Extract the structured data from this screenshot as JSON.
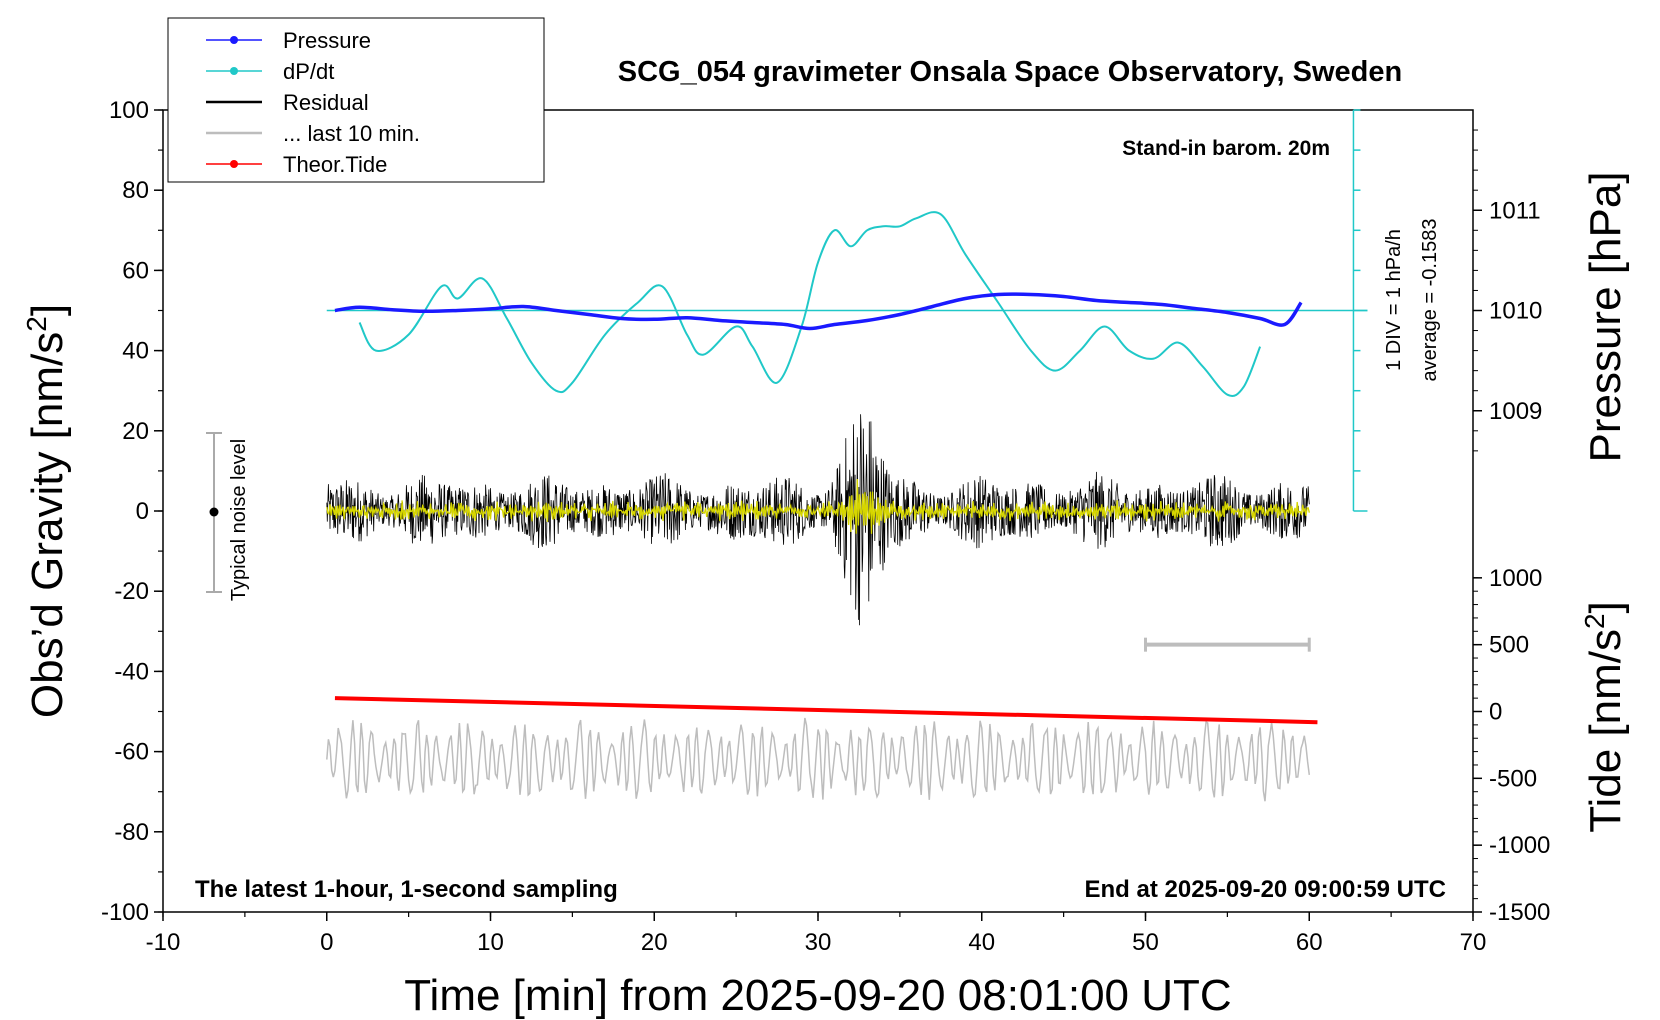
{
  "chart_data": {
    "type": "line",
    "title": "SCG_054 gravimeter Onsala Space Observatory, Sweden",
    "xlabel": "Time [min] from 2025-09-20 08:01:00 UTC",
    "ylabel_base": "Obs’d Gravity [nm/s",
    "ylabel_sup": "2",
    "ylabel_end": "]",
    "y2label": "Pressure [hPa]",
    "y3label_base": "Tide [nm/s",
    "y3label_sup": "2",
    "y3label_end": "]",
    "xlim": [
      -10,
      70
    ],
    "ylim": [
      -100,
      100
    ],
    "xticks": [
      -10,
      0,
      10,
      20,
      30,
      40,
      50,
      60,
      70
    ],
    "yticks": [
      -100,
      -80,
      -60,
      -40,
      -20,
      0,
      20,
      40,
      60,
      80,
      100
    ],
    "pressure_ticks": [
      1009,
      1010,
      1011
    ],
    "tide_ticks": [
      -1500,
      -1000,
      -500,
      0,
      500,
      1000
    ],
    "notes": {
      "stand_in": "Stand-in barom. 20m",
      "div": "1 DIV = 1 hPa/h",
      "average": "average = -0.1583",
      "footer_left": "The latest 1-hour, 1-second sampling",
      "footer_right": "End at 2025-09-20 09:00:59 UTC",
      "noise": "Typical noise level"
    },
    "legend": [
      {
        "label": "Pressure",
        "color": "#1a1aff",
        "marker": true
      },
      {
        "label": "dP/dt",
        "color": "#20c8c8",
        "marker": true
      },
      {
        "label": "Residual",
        "color": "#000000",
        "marker": false
      },
      {
        "label": "... last 10 min.",
        "color": "#bdbdbd",
        "marker": false
      },
      {
        "label": "Theor.Tide",
        "color": "#ff0000",
        "marker": true
      }
    ],
    "series": [
      {
        "name": "Pressure",
        "units": "gravity-axis",
        "x": [
          0.5,
          2,
          4,
          6,
          8,
          10,
          12,
          14,
          16,
          18,
          20,
          22,
          24,
          26,
          28,
          29.5,
          31,
          33,
          35,
          37,
          39,
          41,
          43,
          45,
          47,
          49,
          51,
          53,
          55,
          57,
          58.5,
          59.5
        ],
        "values": [
          50,
          50.8,
          50.2,
          49.8,
          50,
          50.4,
          51,
          50,
          49,
          48,
          47.8,
          48.2,
          47.5,
          47,
          46.5,
          45.5,
          46.5,
          47.5,
          49,
          51,
          53,
          54,
          54,
          53.5,
          52.5,
          52,
          51.5,
          50.5,
          49.5,
          48,
          46.5,
          52
        ]
      },
      {
        "name": "dP/dt",
        "units": "gravity-axis",
        "x": [
          2,
          3,
          5,
          7,
          8,
          9.5,
          11,
          12.5,
          14,
          15,
          17,
          19,
          20.5,
          22,
          23,
          25,
          26,
          27.5,
          29,
          30,
          31,
          32,
          33,
          34,
          35,
          36,
          37.5,
          39,
          41,
          43,
          44.5,
          46,
          47.5,
          49,
          50.5,
          52,
          53.5,
          55,
          56,
          57
        ],
        "values": [
          47,
          40,
          44,
          56,
          53,
          58,
          48,
          37,
          30,
          32,
          44,
          52,
          56,
          44,
          39,
          46,
          41,
          32,
          46,
          62,
          70,
          66,
          70,
          71,
          71,
          73,
          74,
          64,
          52,
          40,
          35,
          40,
          46,
          40,
          38,
          42,
          36,
          29,
          31,
          41
        ]
      },
      {
        "name": "Theor.Tide",
        "units": "nm/s2",
        "x": [
          0.5,
          60.5
        ],
        "values": [
          100,
          -80
        ]
      }
    ],
    "residual_envelope": {
      "center": 0,
      "baseline_amplitude": 9,
      "peak_time_min": 32.7,
      "peak_amplitude": 30
    },
    "last10_trace": {
      "center": -62,
      "amplitude": 10
    },
    "scale_bar_min": [
      50,
      60
    ]
  }
}
